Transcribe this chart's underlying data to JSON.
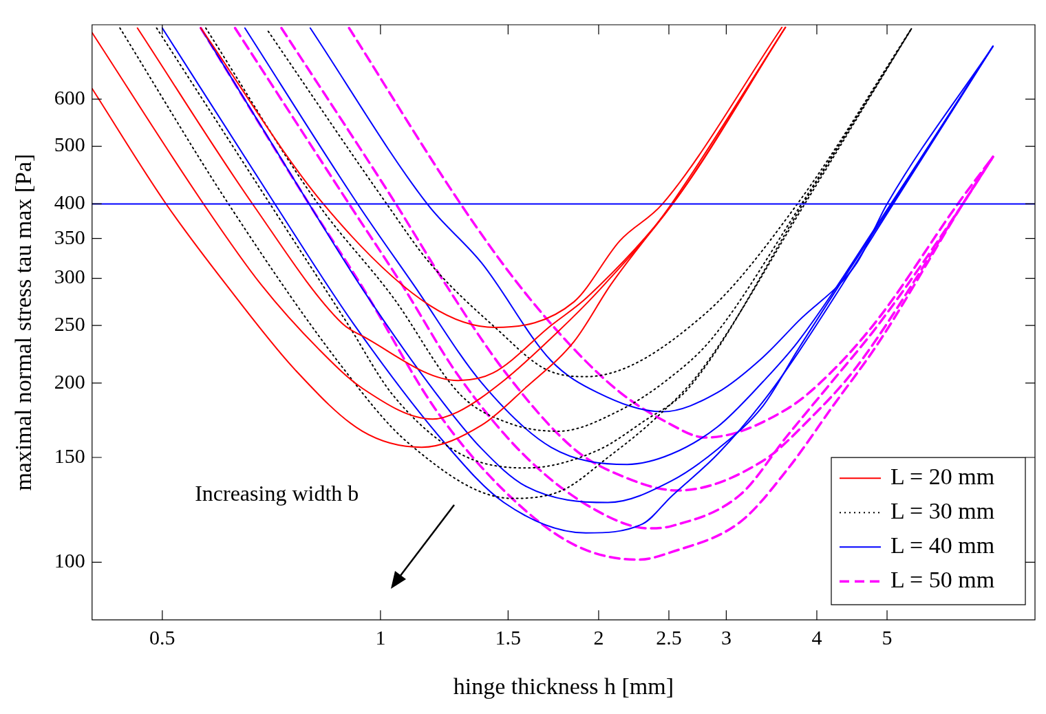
{
  "chart_data": {
    "type": "line",
    "xlabel": "hinge thickness h [mm]",
    "ylabel": "maximal normal stress tau max [Pa]",
    "log": "xy",
    "xlim": [
      0.4,
      8
    ],
    "ylim": [
      80,
      800
    ],
    "xticks": [
      0.5,
      1,
      1.5,
      2,
      2.5,
      3,
      4,
      5
    ],
    "yticks": [
      100,
      150,
      200,
      250,
      300,
      350,
      400,
      500,
      600
    ],
    "grid": false,
    "legend": "bottom right",
    "marker": "none",
    "annotations": [
      "Increasing width b"
    ],
    "ref_lines": [
      {
        "axis": "y",
        "value": 400,
        "color": "#0000ff",
        "line_style": "solid"
      }
    ],
    "series": [
      {
        "name": "L = 20 mm",
        "color": "#ff0000",
        "line_style": "solid",
        "x": [
          0.4,
          0.506,
          0.612,
          0.764,
          0.944,
          1.14,
          1.38,
          1.59,
          1.85,
          2.08,
          2.52,
          3.62
        ],
        "values": [
          625,
          400,
          293,
          210,
          166,
          156,
          170,
          197,
          235,
          293,
          400,
          792
        ]
      },
      {
        "color": "#ff0000",
        "line_style": "solid",
        "x": [
          0.4,
          0.57,
          0.684,
          0.822,
          0.944,
          1.18,
          1.28,
          1.48,
          1.72,
          1.99,
          2.53,
          3.62
        ],
        "values": [
          776,
          400,
          293,
          228,
          196,
          174,
          179,
          202,
          238,
          284,
          400,
          792
        ]
      },
      {
        "color": "#ff0000",
        "line_style": "solid",
        "x": [
          0.462,
          0.666,
          0.885,
          0.944,
          1.28,
          1.43,
          1.72,
          1.93,
          2.53,
          3.62
        ],
        "values": [
          790,
          400,
          252,
          240,
          202,
          208,
          250,
          279,
          400,
          792
        ]
      },
      {
        "color": "#ff0000",
        "line_style": "solid",
        "x": [
          0.565,
          0.834,
          1.17,
          1.44,
          1.85,
          2.14,
          2.45,
          3.58
        ],
        "values": [
          790,
          400,
          270,
          248,
          274,
          347,
          400,
          792
        ]
      },
      {
        "name": "L = 30 mm",
        "color": "#000000",
        "line_style": "dotted",
        "x": [
          0.437,
          0.617,
          0.885,
          1.09,
          1.52,
          1.78,
          2.06,
          2.39,
          2.77,
          3.85,
          5.41
        ],
        "values": [
          790,
          400,
          213,
          159,
          128,
          132,
          150,
          174,
          210,
          400,
          790
        ]
      },
      {
        "color": "#000000",
        "line_style": "dotted",
        "x": [
          0.491,
          0.704,
          0.9,
          1.04,
          1.29,
          1.59,
          1.99,
          2.3,
          2.67,
          3.83,
          5.41
        ],
        "values": [
          790,
          400,
          252,
          191,
          152,
          144,
          154,
          172,
          197,
          400,
          790
        ]
      },
      {
        "color": "#000000",
        "line_style": "dotted",
        "x": [
          0.574,
          0.82,
          1.04,
          1.29,
          1.51,
          1.76,
          2.14,
          2.48,
          2.87,
          3.81,
          5.41
        ],
        "values": [
          790,
          400,
          279,
          191,
          171,
          166,
          180,
          202,
          238,
          400,
          790
        ]
      },
      {
        "color": "#000000",
        "line_style": "dotted",
        "x": [
          0.7,
          1.02,
          1.17,
          1.45,
          1.69,
          1.92,
          2.79,
          3.76,
          5.41
        ],
        "values": [
          780,
          400,
          318,
          246,
          211,
          205,
          260,
          400,
          790
        ]
      },
      {
        "name": "L = 40 mm",
        "color": "#0000ff",
        "line_style": "solid",
        "x": [
          0.5,
          0.715,
          0.917,
          1.23,
          1.48,
          1.92,
          2.3,
          2.52,
          2.92,
          3.37,
          3.77,
          5.1,
          7.0
        ],
        "values": [
          790,
          400,
          252,
          158,
          126,
          112,
          116,
          129,
          152,
          186,
          225,
          400,
          736
        ]
      },
      {
        "color": "#0000ff",
        "line_style": "solid",
        "x": [
          0.565,
          0.797,
          0.944,
          1.19,
          1.38,
          1.59,
          2.06,
          2.52,
          2.92,
          3.37,
          3.77,
          5.08,
          7.0
        ],
        "values": [
          790,
          400,
          288,
          193,
          155,
          134,
          126,
          137,
          155,
          183,
          228,
          400,
          736
        ]
      },
      {
        "color": "#0000ff",
        "line_style": "solid",
        "x": [
          0.65,
          0.93,
          1.11,
          1.38,
          1.72,
          2.19,
          2.52,
          2.92,
          3.37,
          3.77,
          5.06,
          7.0
        ],
        "values": [
          790,
          400,
          293,
          200,
          156,
          146,
          152,
          169,
          201,
          235,
          400,
          736
        ]
      },
      {
        "color": "#0000ff",
        "line_style": "solid",
        "x": [
          0.8,
          1.16,
          1.38,
          1.72,
          1.99,
          2.45,
          2.92,
          3.37,
          3.77,
          4.54,
          5.0,
          7.0
        ],
        "values": [
          790,
          400,
          318,
          218,
          193,
          179,
          193,
          221,
          254,
          318,
          400,
          736
        ]
      },
      {
        "name": "L = 50 mm",
        "color": "#ff00ff",
        "line_style": "dashed",
        "x": [
          0.565,
          0.797,
          0.944,
          1.19,
          1.48,
          1.85,
          2.27,
          2.52,
          3.14,
          3.64,
          4.21,
          4.88,
          6.36,
          7.0
        ],
        "values": [
          790,
          400,
          290,
          181,
          132,
          107,
          101,
          104,
          117,
          143,
          183,
          235,
          400,
          480
        ]
      },
      {
        "color": "#ff00ff",
        "line_style": "dashed",
        "x": [
          0.63,
          0.905,
          1.07,
          1.28,
          1.59,
          1.99,
          2.35,
          2.52,
          3.14,
          3.64,
          4.21,
          4.88,
          6.36,
          7.0
        ],
        "values": [
          790,
          400,
          293,
          206,
          150,
          122,
          114,
          115,
          130,
          163,
          202,
          252,
          400,
          480
        ]
      },
      {
        "color": "#ff00ff",
        "line_style": "dashed",
        "x": [
          0.73,
          1.05,
          1.23,
          1.48,
          1.85,
          2.14,
          2.57,
          3.37,
          3.91,
          4.54,
          6.36,
          7.0
        ],
        "values": [
          790,
          400,
          293,
          210,
          155,
          140,
          132,
          148,
          174,
          213,
          400,
          480
        ]
      },
      {
        "color": "#ff00ff",
        "line_style": "dashed",
        "x": [
          0.905,
          1.29,
          1.55,
          1.85,
          2.14,
          2.48,
          2.81,
          3.64,
          4.21,
          4.88,
          6.26,
          7.0
        ],
        "values": [
          790,
          400,
          293,
          228,
          193,
          172,
          162,
          181,
          210,
          258,
          400,
          480
        ]
      }
    ]
  }
}
